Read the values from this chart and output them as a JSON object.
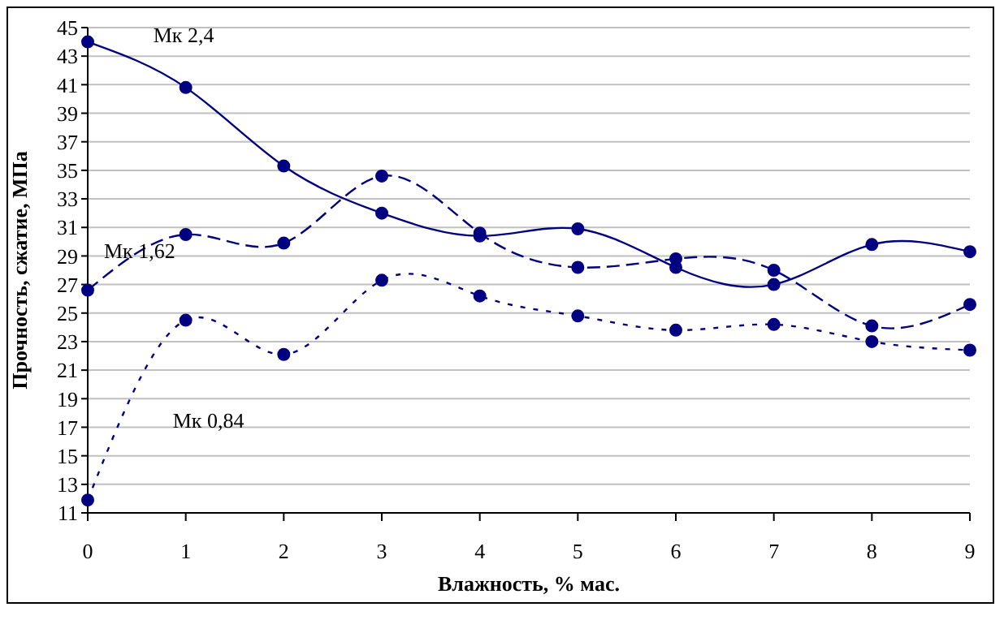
{
  "chart_data": {
    "type": "line",
    "xlabel": "Влажность, % мас.",
    "ylabel": "Прочность, сжатие, МПа",
    "categories": [
      "0",
      "1",
      "2",
      "3",
      "4",
      "5",
      "6",
      "7",
      "8",
      "9"
    ],
    "series": [
      {
        "name": "Мк 2,4",
        "color": "#000080",
        "line_style": "solid",
        "values": [
          44,
          40.8,
          35.3,
          32.0,
          30.4,
          30.9,
          28.2,
          27.0,
          29.8,
          29.3
        ]
      },
      {
        "name": "Мк 1,62",
        "color": "#000080",
        "line_style": "dashed",
        "values": [
          26.6,
          30.5,
          29.9,
          34.6,
          30.6,
          28.2,
          28.8,
          28.0,
          24.1,
          25.6
        ]
      },
      {
        "name": "Мк 0,84",
        "color": "#000080",
        "line_style": "dotted",
        "values": [
          11.9,
          24.5,
          22.1,
          27.3,
          26.2,
          24.8,
          23.8,
          24.2,
          23.0,
          22.4
        ]
      }
    ],
    "ylim": [
      11,
      45
    ],
    "yticks": [
      11,
      13,
      15,
      17,
      19,
      21,
      23,
      25,
      27,
      29,
      31,
      33,
      35,
      37,
      39,
      41,
      43,
      45
    ],
    "grid": "y",
    "marker": "circle"
  }
}
